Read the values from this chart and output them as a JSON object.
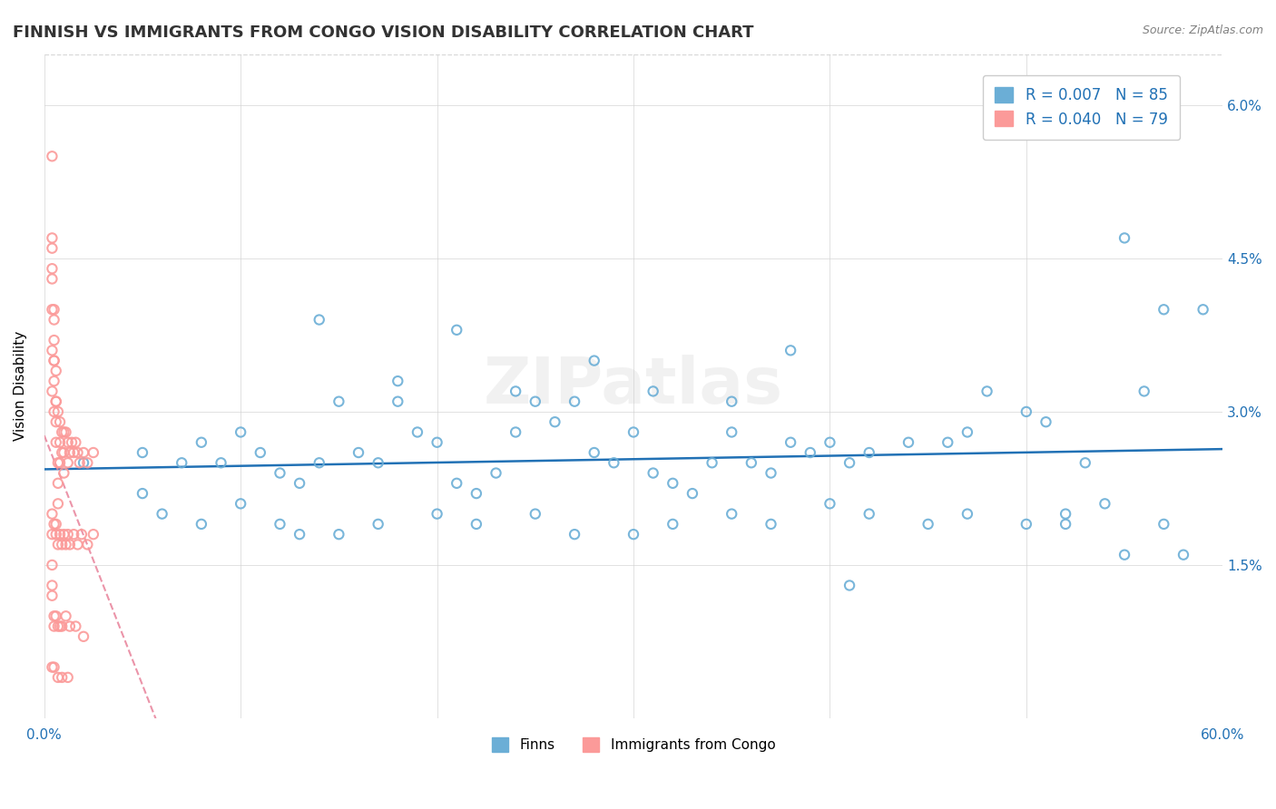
{
  "title": "FINNISH VS IMMIGRANTS FROM CONGO VISION DISABILITY CORRELATION CHART",
  "source": "Source: ZipAtlas.com",
  "ylabel": "Vision Disability",
  "xlim": [
    0.0,
    0.6
  ],
  "ylim": [
    0.0,
    0.065
  ],
  "finn_color": "#6baed6",
  "congo_color": "#fb9a99",
  "finn_line_color": "#2171b5",
  "congo_line_color": "#e8829a",
  "finn_R": 0.007,
  "finn_N": 85,
  "congo_R": 0.04,
  "congo_N": 79,
  "watermark": "ZIPatlas",
  "legend_finn_label": "Finns",
  "legend_congo_label": "Immigrants from Congo",
  "finn_x": [
    0.02,
    0.05,
    0.07,
    0.08,
    0.09,
    0.1,
    0.11,
    0.12,
    0.13,
    0.14,
    0.15,
    0.16,
    0.17,
    0.18,
    0.19,
    0.2,
    0.21,
    0.22,
    0.23,
    0.24,
    0.25,
    0.26,
    0.27,
    0.28,
    0.29,
    0.3,
    0.31,
    0.32,
    0.33,
    0.34,
    0.35,
    0.36,
    0.37,
    0.38,
    0.39,
    0.4,
    0.41,
    0.42,
    0.44,
    0.46,
    0.47,
    0.48,
    0.5,
    0.51,
    0.52,
    0.53,
    0.54,
    0.55,
    0.56,
    0.57,
    0.05,
    0.06,
    0.08,
    0.1,
    0.12,
    0.13,
    0.15,
    0.17,
    0.2,
    0.22,
    0.25,
    0.27,
    0.3,
    0.32,
    0.35,
    0.37,
    0.4,
    0.42,
    0.45,
    0.47,
    0.5,
    0.52,
    0.55,
    0.57,
    0.58,
    0.14,
    0.18,
    0.21,
    0.24,
    0.28,
    0.31,
    0.35,
    0.38,
    0.41,
    0.59
  ],
  "finn_y": [
    0.025,
    0.026,
    0.025,
    0.027,
    0.025,
    0.028,
    0.026,
    0.024,
    0.023,
    0.025,
    0.031,
    0.026,
    0.025,
    0.031,
    0.028,
    0.027,
    0.023,
    0.022,
    0.024,
    0.028,
    0.031,
    0.029,
    0.031,
    0.026,
    0.025,
    0.028,
    0.024,
    0.023,
    0.022,
    0.025,
    0.028,
    0.025,
    0.024,
    0.027,
    0.026,
    0.027,
    0.025,
    0.026,
    0.027,
    0.027,
    0.028,
    0.032,
    0.03,
    0.029,
    0.019,
    0.025,
    0.021,
    0.047,
    0.032,
    0.04,
    0.022,
    0.02,
    0.019,
    0.021,
    0.019,
    0.018,
    0.018,
    0.019,
    0.02,
    0.019,
    0.02,
    0.018,
    0.018,
    0.019,
    0.02,
    0.019,
    0.021,
    0.02,
    0.019,
    0.02,
    0.019,
    0.02,
    0.016,
    0.019,
    0.016,
    0.039,
    0.033,
    0.038,
    0.032,
    0.035,
    0.032,
    0.031,
    0.036,
    0.013,
    0.04
  ],
  "congo_x": [
    0.004,
    0.004,
    0.004,
    0.005,
    0.005,
    0.005,
    0.005,
    0.006,
    0.006,
    0.006,
    0.007,
    0.007,
    0.007,
    0.008,
    0.008,
    0.009,
    0.009,
    0.01,
    0.01,
    0.01,
    0.011,
    0.012,
    0.012,
    0.013,
    0.014,
    0.015,
    0.016,
    0.017,
    0.018,
    0.02,
    0.022,
    0.025,
    0.004,
    0.004,
    0.005,
    0.006,
    0.006,
    0.007,
    0.008,
    0.009,
    0.01,
    0.011,
    0.012,
    0.013,
    0.015,
    0.017,
    0.019,
    0.022,
    0.025,
    0.005,
    0.005,
    0.006,
    0.007,
    0.008,
    0.009,
    0.011,
    0.013,
    0.016,
    0.02,
    0.004,
    0.005,
    0.007,
    0.009,
    0.012,
    0.004,
    0.005,
    0.006,
    0.007,
    0.008,
    0.004,
    0.005,
    0.006,
    0.004,
    0.005,
    0.004,
    0.004,
    0.004,
    0.004,
    0.004
  ],
  "congo_y": [
    0.055,
    0.047,
    0.044,
    0.04,
    0.037,
    0.035,
    0.033,
    0.031,
    0.029,
    0.027,
    0.025,
    0.023,
    0.021,
    0.027,
    0.025,
    0.028,
    0.026,
    0.028,
    0.026,
    0.024,
    0.028,
    0.027,
    0.025,
    0.026,
    0.027,
    0.026,
    0.027,
    0.026,
    0.025,
    0.026,
    0.025,
    0.026,
    0.02,
    0.018,
    0.019,
    0.019,
    0.018,
    0.017,
    0.018,
    0.017,
    0.018,
    0.017,
    0.018,
    0.017,
    0.018,
    0.017,
    0.018,
    0.017,
    0.018,
    0.01,
    0.009,
    0.01,
    0.009,
    0.009,
    0.009,
    0.01,
    0.009,
    0.009,
    0.008,
    0.005,
    0.005,
    0.004,
    0.004,
    0.004,
    0.032,
    0.03,
    0.031,
    0.03,
    0.029,
    0.036,
    0.035,
    0.034,
    0.04,
    0.039,
    0.043,
    0.046,
    0.015,
    0.013,
    0.012
  ]
}
